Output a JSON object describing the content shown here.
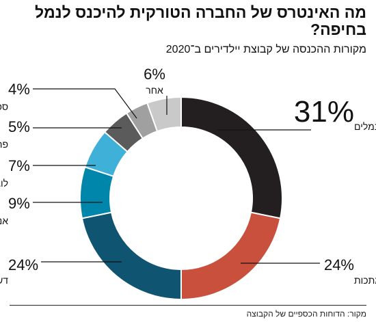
{
  "title": "מה האינטרס של החברה הטורקית להיכנס לנמל בחיפה?",
  "subtitle": "מקורות ההכנסה של קבוצת יילדירים ב־2020",
  "source": "מקור: הדוחות הכספיים של הקבוצה",
  "chart_data": {
    "type": "pie",
    "title": "מה האינטרס של החברה הטורקית להיכנס לנמל בחיפה?",
    "subtitle": "מקורות ההכנסה של קבוצת יילדירים ב־2020",
    "unit": "%",
    "slices": [
      {
        "label": "נמלים",
        "value": 31,
        "display": "31%",
        "color": "#231f20"
      },
      {
        "label": "כרייה ומתכות",
        "value": 24,
        "display": "24%",
        "color": "#c8503c"
      },
      {
        "label": "דשנים וכימיקלים",
        "value": 24,
        "display": "24%",
        "color": "#0f5470"
      },
      {
        "label": "אנרגיה",
        "value": 9,
        "display": "9%",
        "color": "#0086aa"
      },
      {
        "label": "לוגיסטיקה",
        "value": 7,
        "display": "7%",
        "color": "#3fb0d8"
      },
      {
        "label": "פחם",
        "value": 5,
        "display": "5%",
        "color": "#5b5b5b"
      },
      {
        "label": "ספנות",
        "value": 4,
        "display": "4%",
        "color": "#a0a0a0"
      },
      {
        "label": "אחר",
        "value": 6,
        "display": "6%",
        "color": "#c9c9c9"
      }
    ]
  }
}
